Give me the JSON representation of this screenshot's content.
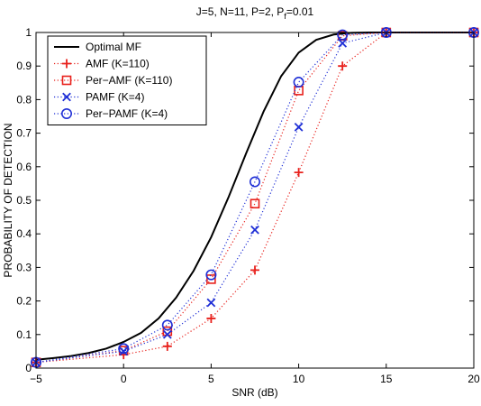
{
  "chart_data": {
    "type": "line",
    "title_main": "J=5, N=11, P=2, P",
    "title_sub": "f",
    "title_tail": "=0.01",
    "xlabel": "SNR (dB)",
    "ylabel": "PROBABILITY OF DETECTION",
    "xlim": [
      -5,
      20
    ],
    "ylim": [
      0,
      1
    ],
    "grid": false,
    "legend_position": "top-left",
    "x_ticks": [
      -5,
      0,
      5,
      10,
      15,
      20
    ],
    "x_tick_labels": [
      "−5",
      "0",
      "5",
      "10",
      "15",
      "20"
    ],
    "y_ticks": [
      0,
      0.1,
      0.2,
      0.3,
      0.4,
      0.5,
      0.6,
      0.7,
      0.8,
      0.9,
      1
    ],
    "y_tick_labels": [
      "0",
      "0.1",
      "0.2",
      "0.3",
      "0.4",
      "0.5",
      "0.6",
      "0.7",
      "0.8",
      "0.9",
      "1"
    ],
    "series": [
      {
        "name": "Optimal MF",
        "color": "#000000",
        "line": "solid",
        "marker": "none",
        "x": [
          -5,
          -4,
          -3,
          -2,
          -1,
          0,
          1,
          2,
          3,
          4,
          5,
          6,
          7,
          8,
          9,
          10,
          11,
          12,
          13,
          14,
          15,
          16,
          17,
          18,
          19,
          20
        ],
        "y": [
          0.025,
          0.03,
          0.036,
          0.045,
          0.058,
          0.078,
          0.105,
          0.148,
          0.21,
          0.29,
          0.39,
          0.51,
          0.64,
          0.765,
          0.87,
          0.94,
          0.978,
          0.994,
          0.999,
          1,
          1,
          1,
          1,
          1,
          1,
          1
        ]
      },
      {
        "name": "AMF (K=110)",
        "color": "#e8211c",
        "line": "dotted",
        "marker": "plus",
        "x": [
          -5,
          0,
          2.5,
          5,
          7.5,
          10,
          12.5,
          15,
          20
        ],
        "y": [
          0.017,
          0.04,
          0.065,
          0.148,
          0.292,
          0.583,
          0.9,
          1,
          1
        ]
      },
      {
        "name": "Per−AMF (K=110)",
        "color": "#e8211c",
        "line": "dotted",
        "marker": "square",
        "x": [
          -5,
          0,
          2.5,
          5,
          7.5,
          10,
          12.5,
          15,
          20
        ],
        "y": [
          0.017,
          0.052,
          0.11,
          0.265,
          0.49,
          0.827,
          0.99,
          1,
          1
        ]
      },
      {
        "name": "PAMF (K=4)",
        "color": "#1f2fd6",
        "line": "dotted",
        "marker": "x",
        "x": [
          -5,
          0,
          2.5,
          5,
          7.5,
          10,
          12.5,
          15,
          20
        ],
        "y": [
          0.017,
          0.05,
          0.1,
          0.195,
          0.412,
          0.718,
          0.968,
          1,
          1
        ]
      },
      {
        "name": "Per−PAMF (K=4)",
        "color": "#1f2fd6",
        "line": "dotted",
        "marker": "circle",
        "x": [
          -5,
          0,
          2.5,
          5,
          7.5,
          10,
          12.5,
          15,
          20
        ],
        "y": [
          0.017,
          0.058,
          0.128,
          0.278,
          0.555,
          0.852,
          0.993,
          1,
          1
        ]
      }
    ]
  }
}
